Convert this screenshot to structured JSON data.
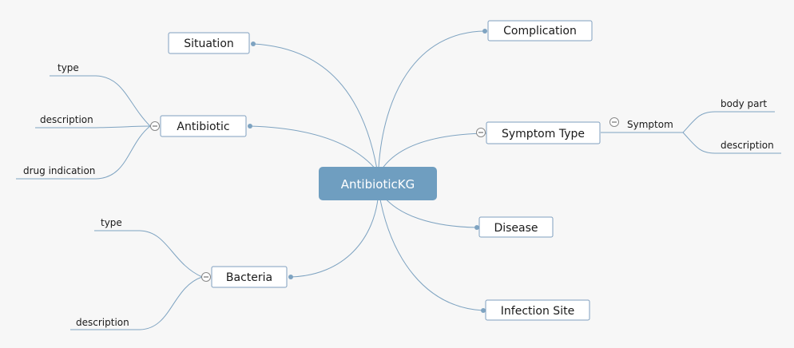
{
  "colors": {
    "background": "#f7f7f7",
    "central_fill": "#6f9ec0",
    "central_text": "#ffffff",
    "line": "#7ea3c1",
    "node_border": "#7f9fbf",
    "node_fill": "#ffffff",
    "text": "#1a1a1a"
  },
  "central": {
    "label": "AntibioticKG"
  },
  "topics": {
    "situation": {
      "label": "Situation"
    },
    "antibiotic": {
      "label": "Antibiotic"
    },
    "bacteria": {
      "label": "Bacteria"
    },
    "complication": {
      "label": "Complication"
    },
    "symptom_type": {
      "label": "Symptom Type"
    },
    "disease": {
      "label": "Disease"
    },
    "infection_site": {
      "label": "Infection Site"
    }
  },
  "subtopics": {
    "antibiotic_type": {
      "label": "type"
    },
    "antibiotic_description": {
      "label": "description"
    },
    "antibiotic_drug_indication": {
      "label": "drug indication"
    },
    "bacteria_type": {
      "label": "type"
    },
    "bacteria_description": {
      "label": "description"
    },
    "symptom": {
      "label": "Symptom"
    },
    "symptom_body_part": {
      "label": "body part"
    },
    "symptom_description": {
      "label": "description"
    }
  }
}
